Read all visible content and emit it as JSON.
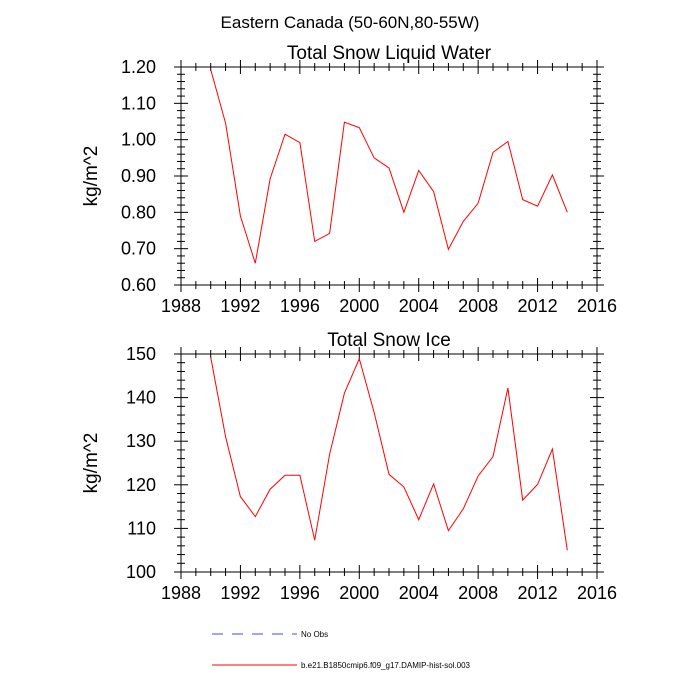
{
  "suptitle": "Eastern Canada (50-60N,80-55W)",
  "colors": {
    "model": "#ff0000",
    "obs": "#4a4ad8",
    "axis": "#000000"
  },
  "legend": {
    "obs_label": "No Obs",
    "model_label": "b.e21.B1850cmip6.f09_g17.DAMIP-hist-sol.003"
  },
  "chart_data": [
    {
      "type": "line",
      "title": "Total Snow Liquid Water",
      "ylabel": "kg/m^2",
      "xlabel": "",
      "xlim": [
        1988,
        2016
      ],
      "ylim": [
        0.6,
        1.2
      ],
      "xticks": [
        "1988",
        "1992",
        "1996",
        "2000",
        "2004",
        "2008",
        "2012",
        "2016"
      ],
      "yticks": [
        "0.60",
        "0.70",
        "0.80",
        "0.90",
        "1.00",
        "1.10",
        "1.20"
      ],
      "x": [
        1990,
        1991,
        1992,
        1993,
        1994,
        1995,
        1996,
        1997,
        1998,
        1999,
        2000,
        2001,
        2002,
        2003,
        2004,
        2005,
        2006,
        2007,
        2008,
        2009,
        2010,
        2011,
        2012,
        2013,
        2014
      ],
      "series": [
        {
          "values": [
            1.193,
            1.045,
            0.79,
            0.66,
            0.892,
            1.015,
            0.992,
            0.72,
            0.742,
            1.048,
            1.033,
            0.95,
            0.922,
            0.8,
            0.915,
            0.857,
            0.698,
            0.775,
            0.825,
            0.965,
            0.995,
            0.835,
            0.817,
            0.903,
            0.8
          ]
        }
      ]
    },
    {
      "type": "line",
      "title": "Total Snow Ice",
      "ylabel": "kg/m^2",
      "xlabel": "",
      "xlim": [
        1988,
        2016
      ],
      "ylim": [
        100,
        150
      ],
      "xticks": [
        "1988",
        "1992",
        "1996",
        "2000",
        "2004",
        "2008",
        "2012",
        "2016"
      ],
      "yticks": [
        "100",
        "110",
        "120",
        "130",
        "140",
        "150"
      ],
      "x": [
        1990,
        1991,
        1992,
        1993,
        1994,
        1995,
        1996,
        1997,
        1998,
        1999,
        2000,
        2001,
        2002,
        2003,
        2004,
        2005,
        2006,
        2007,
        2008,
        2009,
        2010,
        2011,
        2012,
        2013,
        2014
      ],
      "series": [
        {
          "values": [
            149.3,
            131.0,
            117.3,
            112.7,
            119.0,
            122.2,
            122.2,
            107.3,
            127.0,
            141.0,
            148.9,
            136.6,
            122.4,
            119.5,
            112.0,
            120.2,
            109.5,
            114.5,
            122.0,
            126.5,
            142.2,
            116.5,
            120.1,
            128.2,
            105.0
          ]
        }
      ]
    }
  ]
}
